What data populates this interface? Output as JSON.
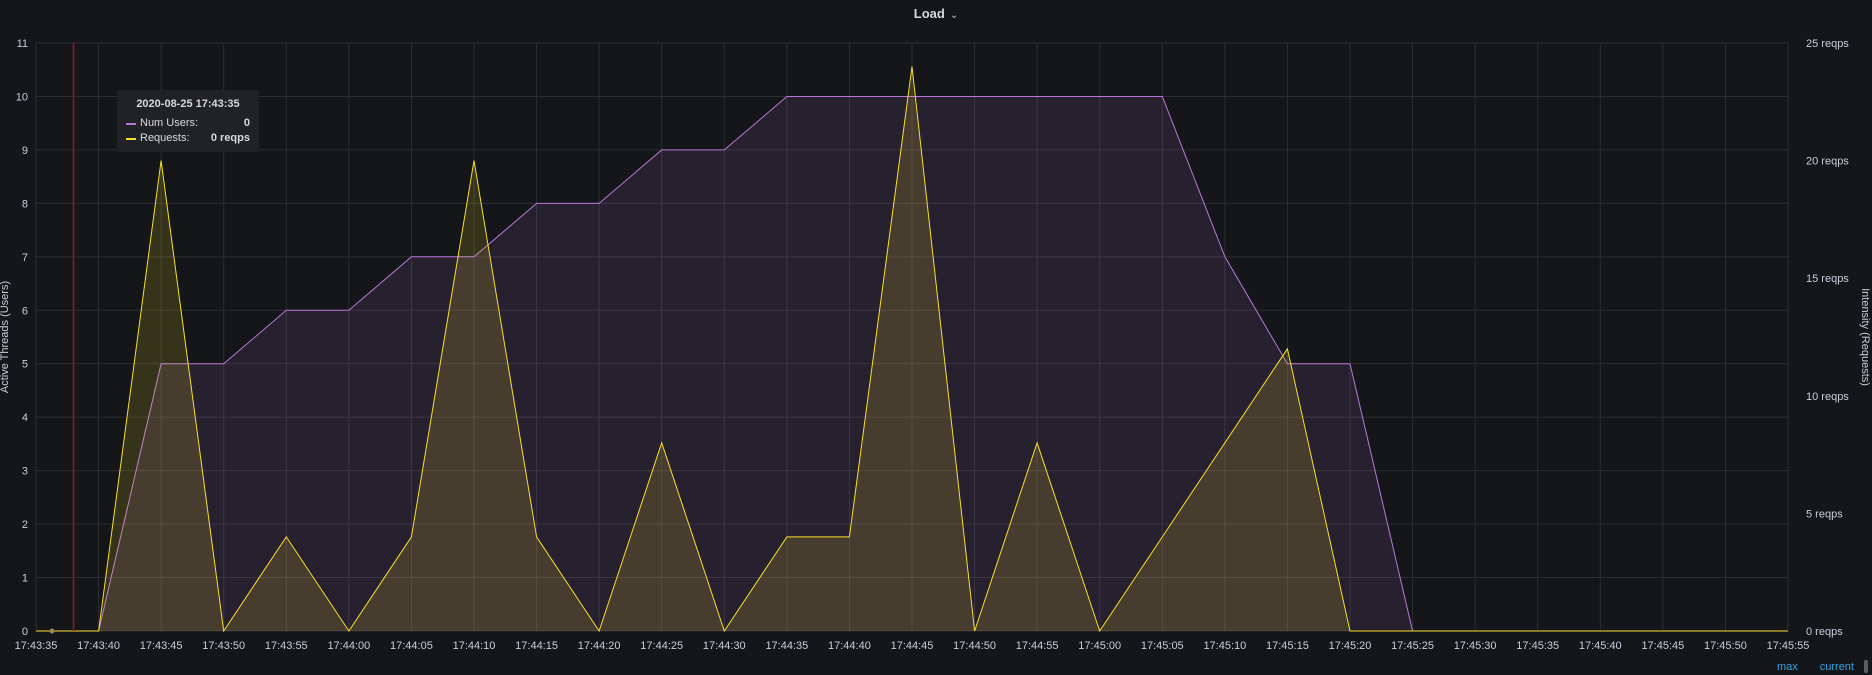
{
  "panel": {
    "title": "Load"
  },
  "tooltip": {
    "time": "2020-08-25 17:43:35",
    "rows": [
      {
        "label": "Num Users:",
        "value": "0",
        "color": "#b877d9"
      },
      {
        "label": "Requests:",
        "value": "0 reqps",
        "color": "#fade2a"
      }
    ]
  },
  "legend_links": {
    "max": "max",
    "current": "current"
  },
  "colors": {
    "background": "#141619",
    "grid": "#2c2e33",
    "users": "#b877d9",
    "requests": "#fade2a",
    "cursor": "#a0131a",
    "text": "#ccccdc"
  },
  "chart_data": {
    "type": "area",
    "x": [
      "17:43:35",
      "17:43:40",
      "17:43:45",
      "17:43:50",
      "17:43:55",
      "17:44:00",
      "17:44:05",
      "17:44:10",
      "17:44:15",
      "17:44:20",
      "17:44:25",
      "17:44:30",
      "17:44:35",
      "17:44:40",
      "17:44:45",
      "17:44:50",
      "17:44:55",
      "17:45:00",
      "17:45:05",
      "17:45:10",
      "17:45:15",
      "17:45:20",
      "17:45:25",
      "17:45:30",
      "17:45:35",
      "17:45:40",
      "17:45:45",
      "17:45:50",
      "17:45:55"
    ],
    "x_tick_labels": [
      "17:43:35",
      "17:43:40",
      "17:43:45",
      "17:43:50",
      "17:43:55",
      "17:44:00",
      "17:44:05",
      "17:44:10",
      "17:44:15",
      "17:44:20",
      "17:44:25",
      "17:44:30",
      "17:44:35",
      "17:44:40",
      "17:44:45",
      "17:44:50",
      "17:44:55",
      "17:45:00",
      "17:45:05",
      "17:45:10",
      "17:45:15",
      "17:45:20",
      "17:45:25",
      "17:45:30",
      "17:45:35",
      "17:45:40",
      "17:45:45",
      "17:45:50",
      "17:45:55"
    ],
    "series": [
      {
        "name": "Num Users",
        "axis": "left",
        "color": "#b877d9",
        "points": [
          [
            "17:43:35",
            0
          ],
          [
            "17:43:40",
            0
          ],
          [
            "17:43:45",
            5
          ],
          [
            "17:43:50",
            5
          ],
          [
            "17:43:55",
            6
          ],
          [
            "17:44:00",
            6
          ],
          [
            "17:44:05",
            7
          ],
          [
            "17:44:10",
            7
          ],
          [
            "17:44:15",
            8
          ],
          [
            "17:44:20",
            8
          ],
          [
            "17:44:25",
            9
          ],
          [
            "17:44:30",
            9
          ],
          [
            "17:44:35",
            10
          ],
          [
            "17:44:40",
            10
          ],
          [
            "17:44:45",
            10
          ],
          [
            "17:44:50",
            10
          ],
          [
            "17:44:55",
            10
          ],
          [
            "17:45:00",
            10
          ],
          [
            "17:45:05",
            10
          ],
          [
            "17:45:10",
            7
          ],
          [
            "17:45:15",
            5
          ],
          [
            "17:45:20",
            5
          ],
          [
            "17:45:25",
            0
          ],
          [
            "17:45:30",
            0
          ],
          [
            "17:45:35",
            0
          ],
          [
            "17:45:40",
            0
          ],
          [
            "17:45:45",
            0
          ],
          [
            "17:45:50",
            0
          ],
          [
            "17:45:55",
            0
          ]
        ]
      },
      {
        "name": "Requests",
        "axis": "right",
        "color": "#fade2a",
        "points": [
          [
            "17:43:35",
            0
          ],
          [
            "17:43:40",
            0
          ],
          [
            "17:43:45",
            20
          ],
          [
            "17:43:50",
            0
          ],
          [
            "17:43:55",
            4
          ],
          [
            "17:44:00",
            0
          ],
          [
            "17:44:05",
            4
          ],
          [
            "17:44:10",
            20
          ],
          [
            "17:44:15",
            4
          ],
          [
            "17:44:20",
            0
          ],
          [
            "17:44:25",
            8
          ],
          [
            "17:44:30",
            0
          ],
          [
            "17:44:35",
            4
          ],
          [
            "17:44:40",
            4
          ],
          [
            "17:44:45",
            24
          ],
          [
            "17:44:50",
            0
          ],
          [
            "17:44:55",
            8
          ],
          [
            "17:45:00",
            0
          ],
          [
            "17:45:05",
            4
          ],
          [
            "17:45:15",
            12
          ],
          [
            "17:45:20",
            0
          ],
          [
            "17:45:25",
            0
          ],
          [
            "17:45:30",
            0
          ],
          [
            "17:45:35",
            0
          ],
          [
            "17:45:40",
            0
          ],
          [
            "17:45:45",
            0
          ],
          [
            "17:45:50",
            0
          ],
          [
            "17:45:55",
            0
          ]
        ]
      }
    ],
    "ylabel": "Active Threads (Users)",
    "ylim": [
      0,
      11
    ],
    "yticks": [
      0,
      1,
      2,
      3,
      4,
      5,
      6,
      7,
      8,
      9,
      10,
      11
    ],
    "y2label": "Intensity (Requests)",
    "y2lim": [
      0,
      25
    ],
    "y2ticks": [
      0,
      5,
      10,
      15,
      20,
      25
    ],
    "y2_tick_labels": [
      "0 reqps",
      "5 reqps",
      "10 reqps",
      "15 reqps",
      "20 reqps",
      "25 reqps"
    ],
    "cursor_x": "17:43:38",
    "grid": true
  }
}
